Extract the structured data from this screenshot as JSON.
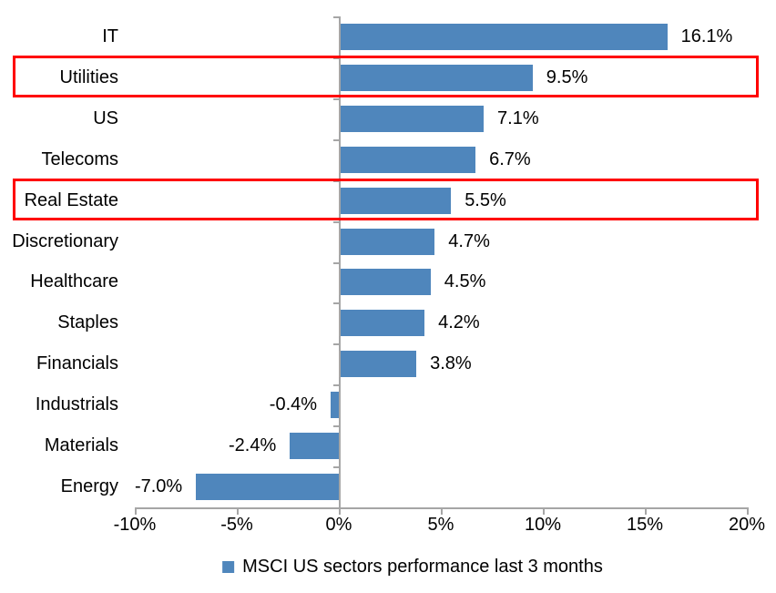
{
  "chart_data": {
    "type": "bar",
    "orientation": "horizontal",
    "title": "",
    "categories": [
      "IT",
      "Utilities",
      "US",
      "Telecoms",
      "Real Estate",
      "Discretionary",
      "Healthcare",
      "Staples",
      "Financials",
      "Industrials",
      "Materials",
      "Energy"
    ],
    "values": [
      16.1,
      9.5,
      7.1,
      6.7,
      5.5,
      4.7,
      4.5,
      4.2,
      3.8,
      -0.4,
      -2.4,
      -7.0
    ],
    "value_labels": [
      "16.1%",
      "9.5%",
      "7.1%",
      "6.7%",
      "5.5%",
      "4.7%",
      "4.5%",
      "4.2%",
      "3.8%",
      "-0.4%",
      "-2.4%",
      "-7.0%"
    ],
    "xlabel": "",
    "ylabel": "",
    "xlim": [
      -10,
      20
    ],
    "x_tick_step": 5,
    "x_tick_labels": [
      "-10%",
      "-5%",
      "0%",
      "5%",
      "10%",
      "15%",
      "20%"
    ],
    "grid": false,
    "legend": "MSCI US sectors performance last 3 months",
    "legend_position": "bottom-center",
    "highlighted_categories": [
      "Utilities",
      "Real Estate"
    ],
    "colors": {
      "bar": "#4F86BC",
      "highlight_box": "#FF0000",
      "axis": "#A6A6A6",
      "text": "#000000",
      "background": "#FFFFFF"
    }
  }
}
